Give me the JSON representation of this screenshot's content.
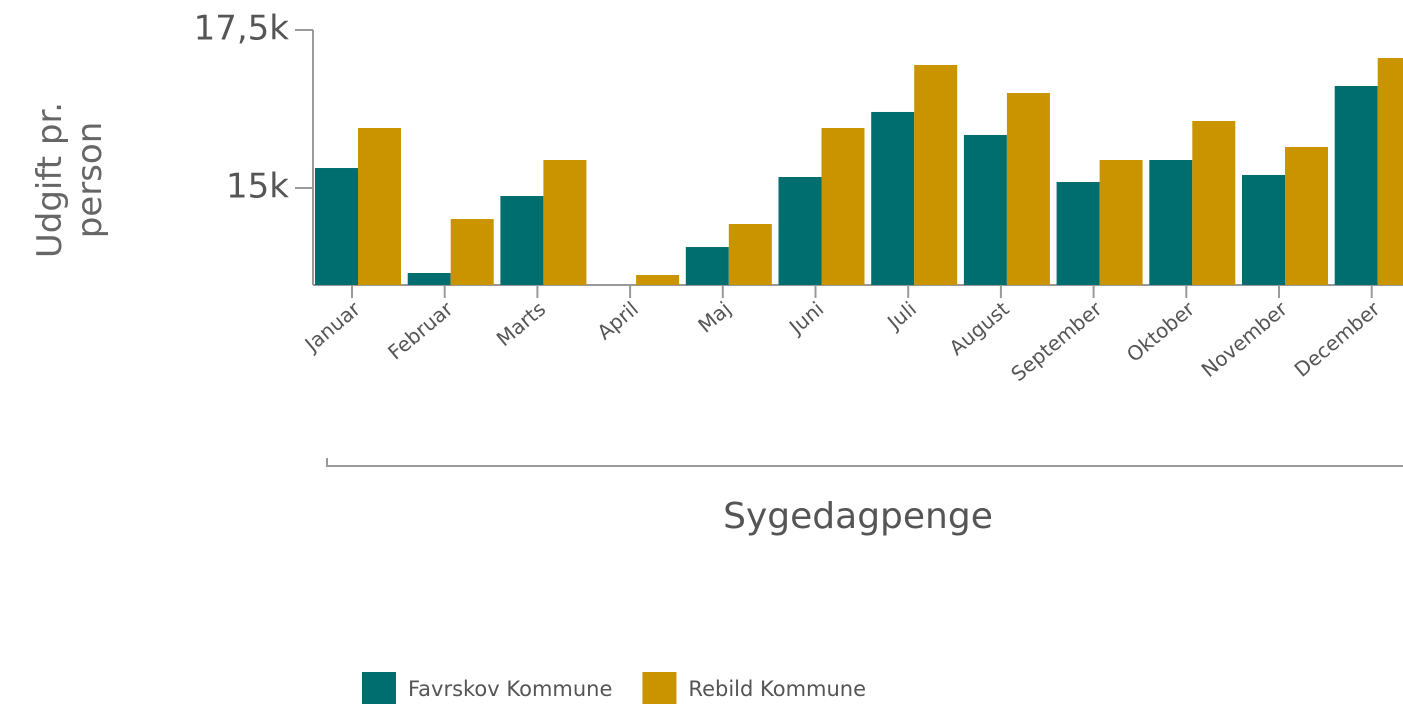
{
  "chart_data": {
    "type": "bar",
    "y_label": "Udgift pr. person",
    "x_label": "Sygedagpenge",
    "categories": [
      "Januar",
      "Februar",
      "Marts",
      "April",
      "Maj",
      "Juni",
      "Juli",
      "August",
      "September",
      "Oktober",
      "November",
      "December"
    ],
    "series": [
      {
        "name": "Favrskov Kommune",
        "color": "#006e6e",
        "values": [
          15316,
          13655,
          14873,
          null,
          14066,
          15174,
          16203,
          15839,
          15095,
          15443,
          15206,
          16614
        ]
      },
      {
        "name": "Rebild Kommune",
        "color": "#c99400",
        "values": [
          15949,
          14509,
          15443,
          13623,
          14430,
          15949,
          16946,
          16503,
          15443,
          16060,
          15649,
          17057
        ]
      }
    ],
    "ylim": [
      13465,
      17500
    ],
    "yticks": [
      {
        "value": 15000,
        "label": "15k"
      },
      {
        "value": 17500,
        "label": "17,5k"
      }
    ],
    "legend": "bottom"
  }
}
